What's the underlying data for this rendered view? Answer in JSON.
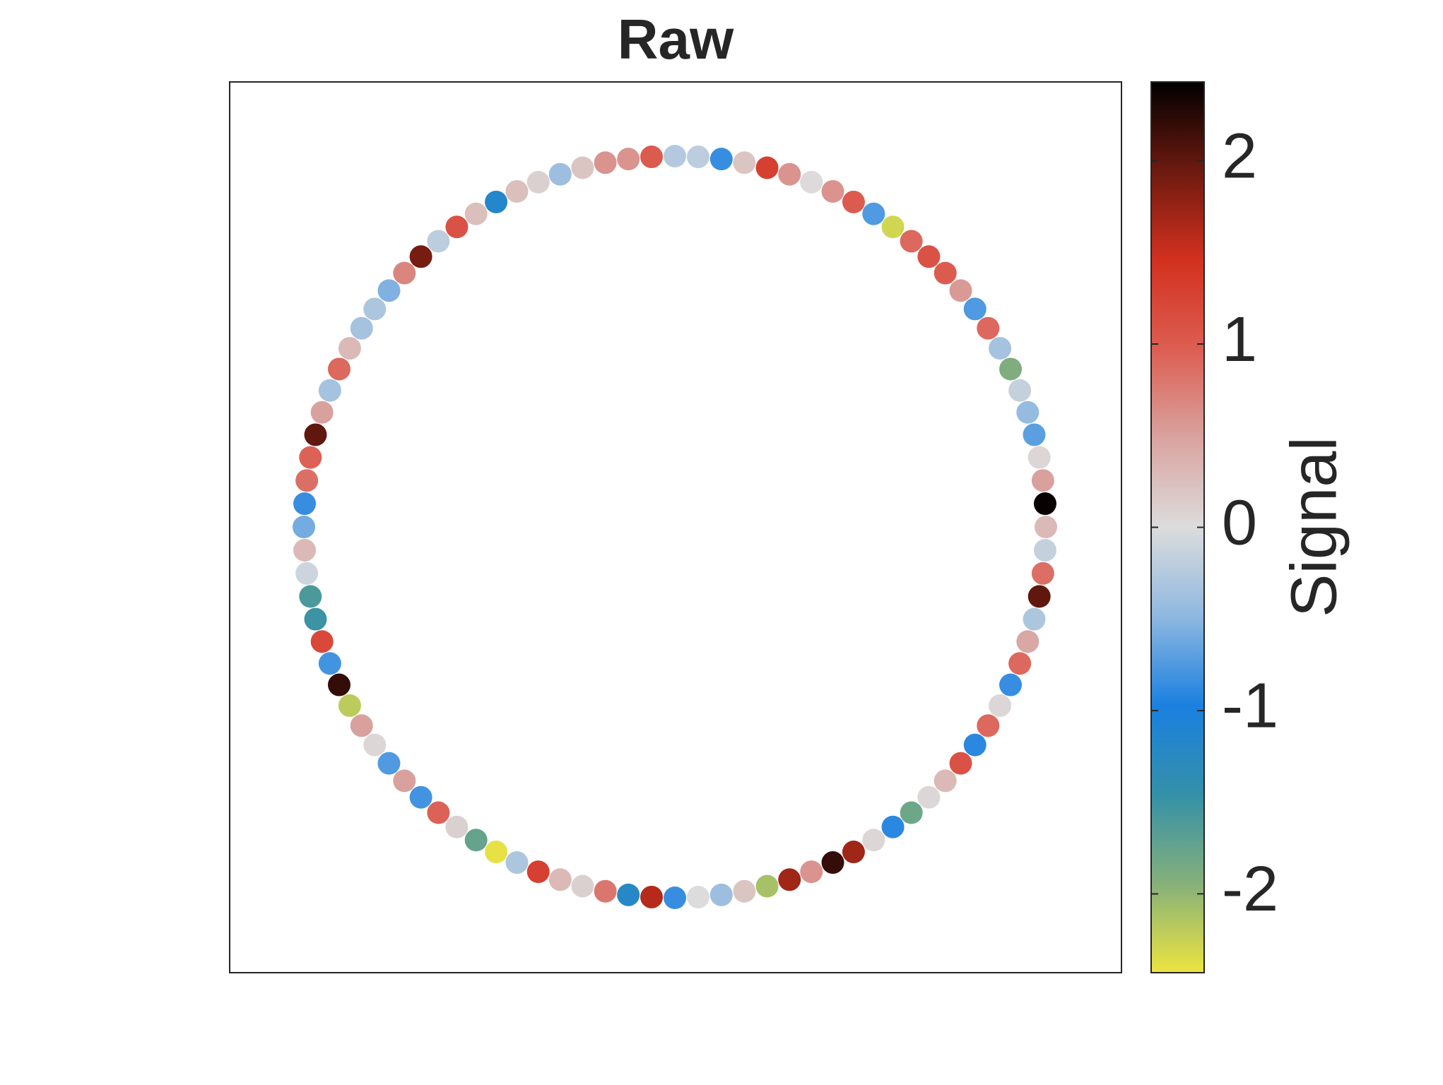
{
  "chart_data": {
    "type": "ring",
    "title": "Raw",
    "colorbar_label": "Signal",
    "clim": [
      -2.43,
      2.43
    ],
    "cticks": [
      -2,
      -1,
      0,
      1,
      2
    ],
    "colormap": [
      "#ede440",
      "#86b07a",
      "#3490a8",
      "#1a80e0",
      "#8fb8e0",
      "#dcdcdc",
      "#d9a3a0",
      "#dc5e52",
      "#d3311f",
      "#6d1a10",
      "#000000"
    ],
    "values": [
      0.3,
      2.4,
      0.5,
      0.05,
      -0.7,
      -0.45,
      -0.15,
      -1.9,
      -0.35,
      0.9,
      -0.75,
      0.55,
      1.0,
      1.1,
      0.9,
      -2.3,
      -0.75,
      1.0,
      0.6,
      0.02,
      0.6,
      1.3,
      0.2,
      -0.85,
      -0.2,
      -0.25,
      1.0,
      0.6,
      0.6,
      0.2,
      -0.4,
      0.1,
      0.25,
      -1.15,
      0.25,
      1.1,
      -0.2,
      1.9,
      0.7,
      -0.55,
      -0.3,
      -0.35,
      0.3,
      0.9,
      -0.35,
      0.5,
      2.0,
      0.95,
      0.85,
      -0.85,
      -0.6,
      0.3,
      -0.1,
      -1.6,
      -1.5,
      1.2,
      -0.8,
      2.2,
      -2.2,
      0.5,
      0.05,
      -0.75,
      0.5,
      -0.8,
      0.95,
      0.1,
      -1.75,
      -2.4,
      -0.3,
      1.3,
      0.3,
      0.1,
      0.8,
      -1.2,
      1.6,
      -0.85,
      0.0,
      -0.4,
      0.2,
      -2.1,
      1.7,
      0.6,
      2.2,
      1.7,
      0.05,
      -0.9,
      -1.8,
      0.05,
      0.3,
      1.1,
      -0.9,
      0.9,
      0.05,
      -0.85,
      0.9,
      0.45,
      -0.3,
      2.0,
      0.85,
      -0.15
    ]
  }
}
